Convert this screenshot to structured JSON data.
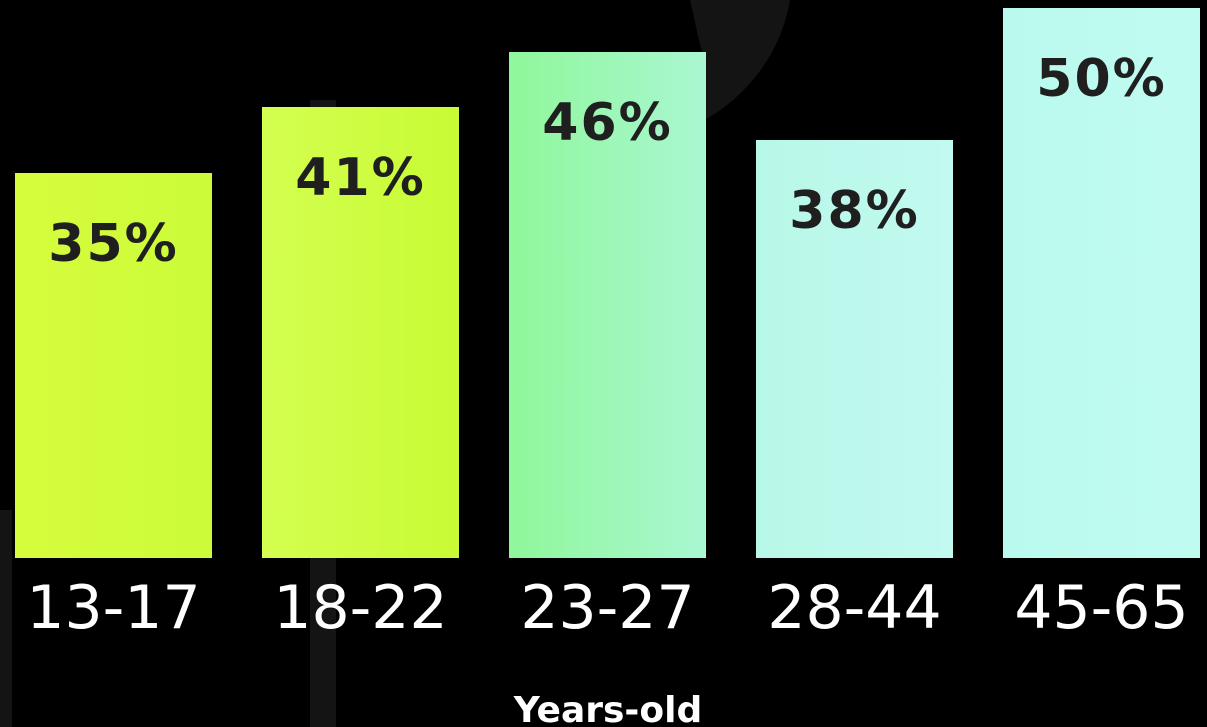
{
  "chart_data": {
    "type": "bar",
    "categories": [
      "13-17",
      "18-22",
      "23-27",
      "28-44",
      "45-65"
    ],
    "values": [
      35,
      41,
      46,
      38,
      50
    ],
    "value_labels": [
      "35%",
      "41%",
      "46%",
      "38%",
      "50%"
    ],
    "xlabel": "Years-old",
    "ylabel": "",
    "ylim": [
      0,
      50
    ],
    "grid": false,
    "colors": {
      "background": "#000000",
      "bar_colors": [
        "#cdfc3a",
        "#cdfc3a",
        "#a6f8b8",
        "#bff9ec",
        "#bffbf0"
      ],
      "label_text": "#1f1f1f",
      "tick_text": "#ffffff",
      "decor": "#141414"
    }
  }
}
